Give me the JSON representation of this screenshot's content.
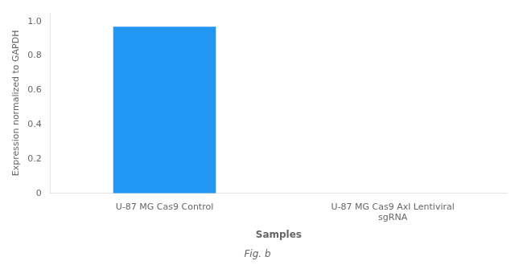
{
  "chart_data": {
    "type": "bar",
    "subtitle": "Fig. b",
    "x_label": "Samples",
    "y_label": "Expression normalized to GAPDH",
    "categories": [
      "U-87 MG Cas9 Control",
      "U-87 MG Cas9 Axl Lentiviral\nsgRNA"
    ],
    "values": [
      0.97,
      0.0
    ],
    "color": "#2196F3",
    "ylim": [
      0,
      1.05
    ],
    "yticks": [
      0,
      0.2,
      0.4,
      0.6,
      0.8,
      {
        "value": 1.0,
        "label": "1.0"
      }
    ],
    "grid": false
  }
}
